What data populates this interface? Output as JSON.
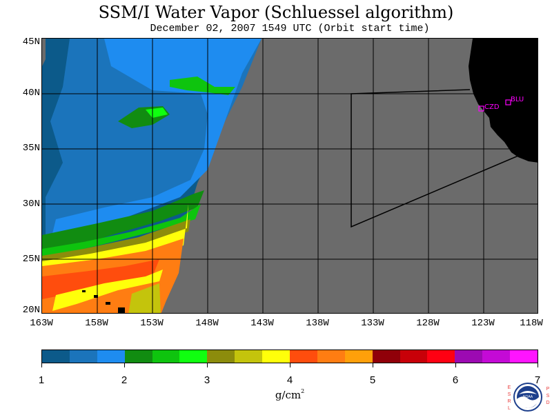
{
  "title": "SSM/I Water Vapor (Schluessel algorithm)",
  "subtitle": "December 02, 2007  1549 UTC  (Orbit start time)",
  "latitude_labels": [
    "45N",
    "40N",
    "35N",
    "30N",
    "25N",
    "20N"
  ],
  "longitude_labels": [
    "163W",
    "158W",
    "153W",
    "148W",
    "143W",
    "138W",
    "133W",
    "128W",
    "123W",
    "118W"
  ],
  "stations": [
    {
      "name": "CZD",
      "lat": 38.6,
      "lon": -123.2
    },
    {
      "name": "BLU",
      "lat": 39.3,
      "lon": -120.8
    }
  ],
  "colorbar": {
    "ticks": [
      "1",
      "2",
      "3",
      "4",
      "5",
      "6",
      "7"
    ],
    "units": "g/cm",
    "units_superscript": "2",
    "colors": [
      "#0c5a8a",
      "#1b74bb",
      "#1e8cf0",
      "#118c11",
      "#0ec40e",
      "#10ff10",
      "#8c8c0c",
      "#c4c40c",
      "#ffff0a",
      "#ff4d0d",
      "#ff7d12",
      "#ffa00a",
      "#900009",
      "#c80008",
      "#ff0012",
      "#9c0ab2",
      "#c40ad6",
      "#ff14ff"
    ]
  },
  "map_colors": {
    "no_data": "#6b6b6b",
    "land": "#000000",
    "station": "#ff00ff"
  },
  "logo": {
    "left_text": "ESRL",
    "right_text": "PSD",
    "center_text": "NOAA"
  }
}
